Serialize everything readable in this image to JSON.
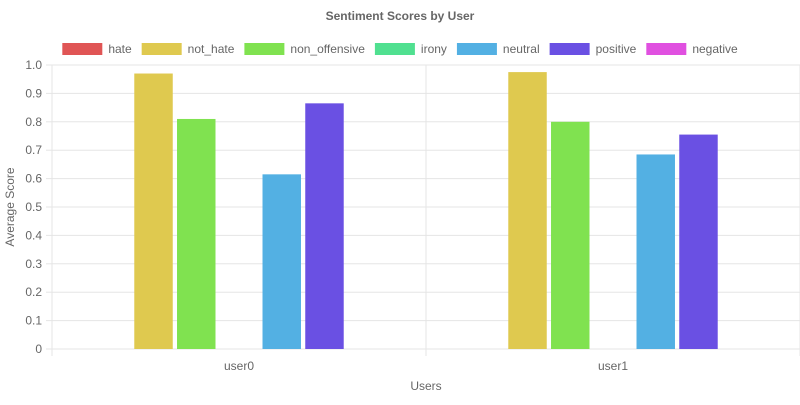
{
  "chart_data": {
    "type": "bar",
    "title": "Sentiment Scores by User",
    "xlabel": "Users",
    "ylabel": "Average Score",
    "categories": [
      "user0",
      "user1"
    ],
    "ylim": [
      0,
      1.0
    ],
    "yticks": [
      "0",
      "0.1",
      "0.2",
      "0.3",
      "0.4",
      "0.5",
      "0.6",
      "0.7",
      "0.8",
      "0.9",
      "1.0"
    ],
    "grid": true,
    "legend_position": "top",
    "series": [
      {
        "name": "hate",
        "color": "#e05555",
        "values": [
          0,
          0
        ]
      },
      {
        "name": "not_hate",
        "color": "#dfc94f",
        "values": [
          0.97,
          0.975
        ]
      },
      {
        "name": "non_offensive",
        "color": "#80e250",
        "values": [
          0.81,
          0.8
        ]
      },
      {
        "name": "irony",
        "color": "#50e090",
        "values": [
          0,
          0
        ]
      },
      {
        "name": "neutral",
        "color": "#53b0e3",
        "values": [
          0.615,
          0.685
        ]
      },
      {
        "name": "positive",
        "color": "#6a50e3",
        "values": [
          0.865,
          0.755
        ]
      },
      {
        "name": "negative",
        "color": "#e050e0",
        "values": [
          0,
          0
        ]
      }
    ]
  }
}
